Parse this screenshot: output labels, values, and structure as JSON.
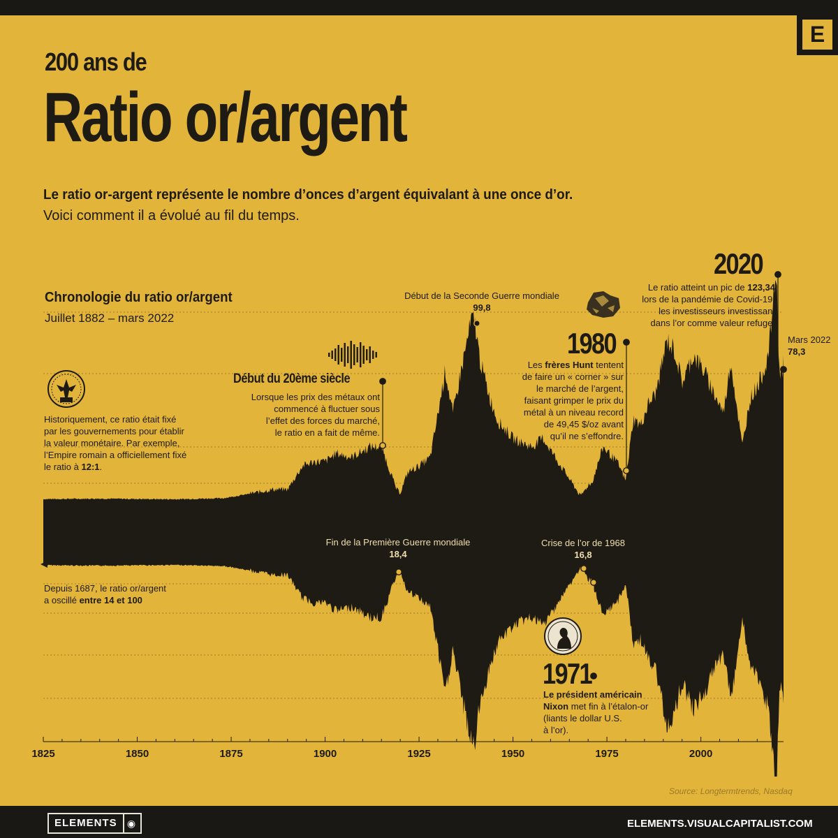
{
  "header": {
    "title_line1": "200 ans de",
    "title_line2": "Ratio or/argent",
    "subtitle_bold": "Le ratio or-argent représente le nombre d’onces d’argent équivalant à une once d’or.",
    "subtitle_regular": "Voici comment il a évolué au fil du temps.",
    "logo_letter": "E"
  },
  "chart_title": "Chronologie du ratio or/argent",
  "chart_subtitle": "Juillet 1882 – mars 2022",
  "annotations": {
    "historic": {
      "text_lines": [
        "Historiquement, ce ratio était fixé",
        "par les gouvernements pour établir",
        "la valeur monétaire. Par exemple,",
        "l’Empire romain a officiellement fixé"
      ],
      "last_line_prefix": "le ratio à ",
      "last_line_bold": "12:1",
      "last_line_suffix": "."
    },
    "since_1687": {
      "line1": "Depuis 1687, le ratio or/argent",
      "line2_prefix": "a oscillé ",
      "line2_bold": "entre 14 et 100"
    },
    "century20": {
      "title": "Début du 20ème siècle",
      "lines": [
        "Lorsque les prix des métaux ont",
        "commencé à fluctuer sous",
        "l’effet des forces du marché,",
        "le ratio en a fait de même."
      ]
    },
    "ww1": {
      "label": "Fin de la Première Guerre mondiale",
      "value": "18,4"
    },
    "ww2": {
      "label": "Début de la Seconde Guerre mondiale",
      "value": "99,8"
    },
    "crisis1968": {
      "label": "Crise de l’or de 1968",
      "value": "16,8"
    },
    "y1971": {
      "year": "1971",
      "bold_line1": "Le président américain",
      "bold_line2": "Nixon",
      "line2_suffix": " met fin à l’étalon-or",
      "line3": "(liants le dollar U.S.",
      "line4": "à l’or)."
    },
    "y1980": {
      "year": "1980",
      "line1_prefix": "Les ",
      "line1_bold": "frères Hunt",
      "line1_suffix": " tentent",
      "lines": [
        "de faire un « corner » sur",
        "le marché de l’argent,",
        "faisant grimper le prix du",
        "métal à un niveau record",
        "de 49,45 $/oz avant",
        "qu’il ne s’effondre."
      ]
    },
    "y2020": {
      "year": "2020",
      "line1_prefix": "Le ratio atteint un pic de ",
      "line1_bold": "123,34",
      "lines": [
        "lors de la pandémie de Covid-19,",
        "les investisseurs investissant",
        "dans l’or comme valeur refuge."
      ]
    },
    "mars2022": {
      "label": "Mars 2022",
      "value": "78,3"
    }
  },
  "chart_data": {
    "type": "area",
    "title": "Chronologie du ratio or/argent",
    "xlabel": "",
    "ylabel": "",
    "x_ticks": [
      "1825",
      "1850",
      "1875",
      "1900",
      "1925",
      "1950",
      "1975",
      "2000"
    ],
    "x_range": [
      1825,
      2022
    ],
    "ylim": [
      0,
      125
    ],
    "grid": true,
    "series": [
      {
        "x": [
          1825,
          1840,
          1860,
          1873,
          1880,
          1886,
          1890,
          1894,
          1897,
          1900,
          1903,
          1907,
          1910,
          1912,
          1915,
          1916,
          1918,
          1919,
          1920,
          1922,
          1925,
          1928,
          1930,
          1932,
          1934,
          1936,
          1939,
          1940,
          1941,
          1942,
          1944,
          1946,
          1948,
          1950,
          1952,
          1955,
          1958,
          1962,
          1965,
          1968,
          1970,
          1971,
          1974,
          1976,
          1978,
          1980,
          1982,
          1984,
          1986,
          1988,
          1991,
          1993,
          1995,
          1998,
          2001,
          2004,
          2006,
          2008,
          2011,
          2013,
          2016,
          2018,
          2020,
          2021,
          2022
        ],
        "y": [
          15.5,
          15.7,
          15.4,
          15.9,
          18,
          20,
          20,
          31,
          33,
          33,
          37,
          35,
          38,
          40,
          40,
          35,
          25,
          20,
          18.4,
          28,
          31,
          35,
          55,
          76,
          55,
          74,
          99.8,
          97,
          83,
          75,
          62,
          52,
          48,
          44,
          42,
          40,
          44,
          33,
          25,
          16.8,
          22,
          23,
          40,
          36,
          32,
          24,
          53,
          50,
          60,
          65,
          90,
          85,
          70,
          83,
          75,
          63,
          56,
          80,
          40,
          62,
          72,
          83,
          123.34,
          72,
          78.3
        ]
      }
    ],
    "annotated_points": [
      {
        "label": "Début de la Seconde Guerre mondiale",
        "x": 1939,
        "y": 99.8
      },
      {
        "label": "Fin de la Première Guerre mondiale",
        "x": 1920,
        "y": 18.4
      },
      {
        "label": "Crise de l’or de 1968",
        "x": 1968,
        "y": 16.8
      },
      {
        "label": "2020",
        "x": 2020,
        "y": 123.34
      },
      {
        "label": "Mars 2022",
        "x": 2022,
        "y": 78.3
      }
    ]
  },
  "footer": {
    "source": "Source: Longtermtrends, Nasdaq",
    "brand": "ELEMENTS",
    "url": "ELEMENTS.VISUALCAPITALIST.COM"
  },
  "colors": {
    "background": "#e3b43a",
    "ink": "#1e1a14",
    "bar": "#1a1815"
  },
  "icons": [
    "roman-eagle-coin-icon",
    "soundwave-icon",
    "silver-nugget-icon",
    "nixon-coin-icon",
    "arrow-left-icon"
  ]
}
